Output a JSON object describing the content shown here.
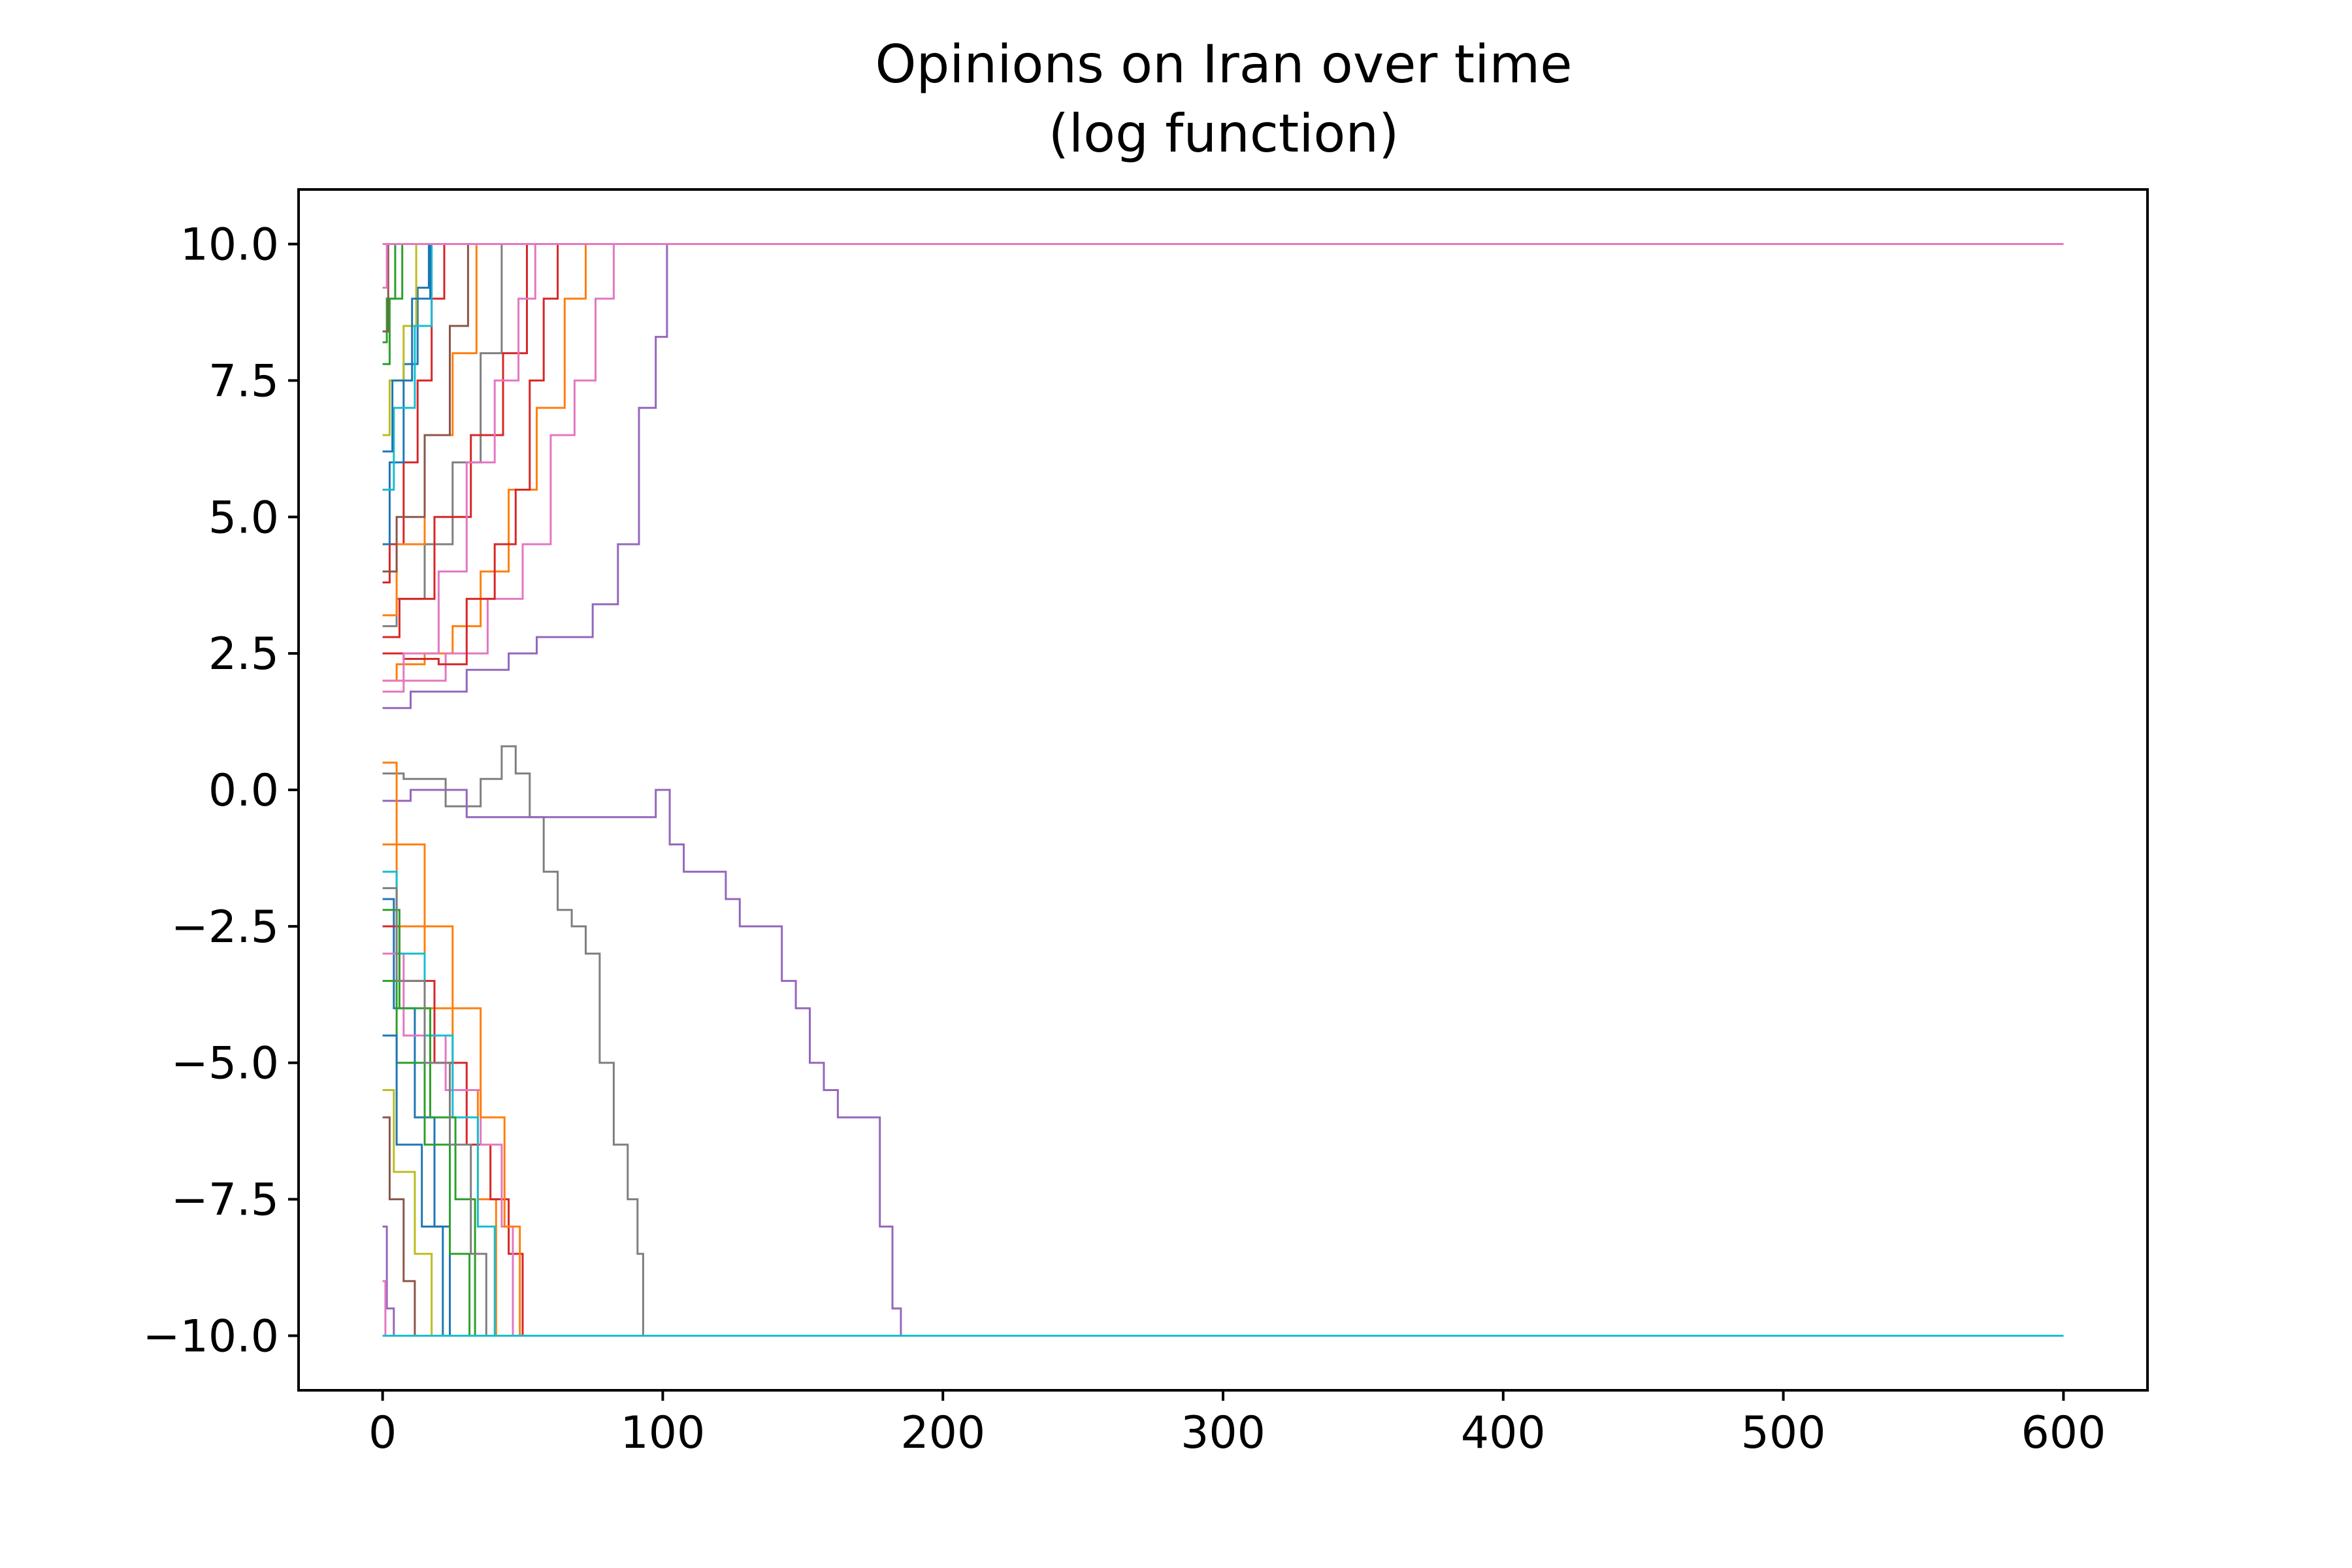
{
  "chart_data": {
    "type": "line",
    "title": "Opinions on Iran over time",
    "subtitle": "(log function)",
    "xlabel": "",
    "ylabel": "",
    "xlim": [
      -30,
      630
    ],
    "ylim": [
      -11,
      11
    ],
    "xticks": [
      "0",
      "100",
      "200",
      "300",
      "400",
      "500",
      "600"
    ],
    "xtick_values": [
      0,
      100,
      200,
      300,
      400,
      500,
      600
    ],
    "yticks": [
      "10.0",
      "7.5",
      "5.0",
      "2.5",
      "0.0",
      "−2.5",
      "−5.0",
      "−7.5",
      "−10.0"
    ],
    "ytick_values": [
      10,
      7.5,
      5,
      2.5,
      0,
      -2.5,
      -5,
      -7.5,
      -10
    ],
    "grid": false,
    "legend": "none",
    "palette": [
      "#1f77b4",
      "#ff7f0e",
      "#2ca02c",
      "#d62728",
      "#9467bd",
      "#8c564b",
      "#e377c2",
      "#7f7f7f",
      "#bcbd22",
      "#17becf"
    ],
    "x_max": 600,
    "series": [
      {
        "color": "#d62728",
        "points": [
          [
            0,
            3.8
          ],
          [
            5,
            4.5
          ],
          [
            10,
            6.0
          ],
          [
            15,
            7.5
          ],
          [
            20,
            9.0
          ],
          [
            24,
            10
          ],
          [
            600,
            10
          ]
        ]
      },
      {
        "color": "#2ca02c",
        "points": [
          [
            0,
            8.2
          ],
          [
            3,
            9.0
          ],
          [
            6,
            10
          ],
          [
            600,
            10
          ]
        ]
      },
      {
        "color": "#1f77b4",
        "points": [
          [
            0,
            4.5
          ],
          [
            5,
            6.0
          ],
          [
            10,
            7.8
          ],
          [
            15,
            9.2
          ],
          [
            18,
            10
          ],
          [
            600,
            10
          ]
        ]
      },
      {
        "color": "#ff7f0e",
        "points": [
          [
            0,
            2.0
          ],
          [
            10,
            2.3
          ],
          [
            20,
            2.5
          ],
          [
            30,
            3.0
          ],
          [
            40,
            4.0
          ],
          [
            50,
            5.5
          ],
          [
            60,
            7.0
          ],
          [
            70,
            9.0
          ],
          [
            75,
            10
          ],
          [
            600,
            10
          ]
        ]
      },
      {
        "color": "#9467bd",
        "points": [
          [
            0,
            1.5
          ],
          [
            20,
            1.8
          ],
          [
            40,
            2.2
          ],
          [
            50,
            2.5
          ],
          [
            60,
            2.8
          ],
          [
            70,
            2.8
          ],
          [
            80,
            3.4
          ],
          [
            88,
            4.5
          ],
          [
            95,
            7.0
          ],
          [
            100,
            8.3
          ],
          [
            103,
            10
          ],
          [
            600,
            10
          ]
        ]
      },
      {
        "color": "#e377c2",
        "points": [
          [
            0,
            1.8
          ],
          [
            15,
            2.0
          ],
          [
            30,
            2.5
          ],
          [
            45,
            3.5
          ],
          [
            55,
            4.5
          ],
          [
            65,
            6.5
          ],
          [
            72,
            7.5
          ],
          [
            80,
            9.0
          ],
          [
            85,
            10
          ],
          [
            600,
            10
          ]
        ]
      },
      {
        "color": "#d62728",
        "points": [
          [
            0,
            2.5
          ],
          [
            15,
            2.4
          ],
          [
            25,
            2.3
          ],
          [
            35,
            3.5
          ],
          [
            45,
            4.5
          ],
          [
            50,
            5.5
          ],
          [
            55,
            7.5
          ],
          [
            60,
            9.0
          ],
          [
            65,
            10
          ],
          [
            600,
            10
          ]
        ]
      },
      {
        "color": "#bcbd22",
        "points": [
          [
            0,
            6.5
          ],
          [
            5,
            7.5
          ],
          [
            10,
            8.5
          ],
          [
            14,
            10
          ],
          [
            600,
            10
          ]
        ]
      },
      {
        "color": "#8c564b",
        "points": [
          [
            0,
            8.4
          ],
          [
            4,
            10
          ],
          [
            600,
            10
          ]
        ]
      },
      {
        "color": "#17becf",
        "points": [
          [
            0,
            5.5
          ],
          [
            8,
            7.0
          ],
          [
            15,
            8.5
          ],
          [
            20,
            10
          ],
          [
            600,
            10
          ]
        ]
      },
      {
        "color": "#e377c2",
        "points": [
          [
            0,
            9.2
          ],
          [
            3,
            10
          ],
          [
            600,
            10
          ]
        ]
      },
      {
        "color": "#7f7f7f",
        "points": [
          [
            0,
            3.0
          ],
          [
            10,
            3.5
          ],
          [
            20,
            4.5
          ],
          [
            30,
            6.0
          ],
          [
            40,
            8.0
          ],
          [
            45,
            10
          ],
          [
            600,
            10
          ]
        ]
      },
      {
        "color": "#d62728",
        "points": [
          [
            0,
            2.8
          ],
          [
            12,
            3.5
          ],
          [
            25,
            5.0
          ],
          [
            38,
            6.5
          ],
          [
            48,
            8.0
          ],
          [
            55,
            10
          ],
          [
            600,
            10
          ]
        ]
      },
      {
        "color": "#2ca02c",
        "points": [
          [
            0,
            7.8
          ],
          [
            5,
            9.0
          ],
          [
            9,
            10
          ],
          [
            600,
            10
          ]
        ]
      },
      {
        "color": "#1f77b4",
        "points": [
          [
            0,
            6.2
          ],
          [
            7,
            7.5
          ],
          [
            14,
            9.0
          ],
          [
            20,
            10
          ],
          [
            600,
            10
          ]
        ]
      },
      {
        "color": "#ff7f0e",
        "points": [
          [
            0,
            3.2
          ],
          [
            10,
            4.5
          ],
          [
            20,
            6.5
          ],
          [
            30,
            8.0
          ],
          [
            37,
            10
          ],
          [
            600,
            10
          ]
        ]
      },
      {
        "color": "#8c564b",
        "points": [
          [
            0,
            4.0
          ],
          [
            10,
            5.0
          ],
          [
            20,
            6.5
          ],
          [
            28,
            8.5
          ],
          [
            33,
            10
          ],
          [
            600,
            10
          ]
        ]
      },
      {
        "color": "#e377c2",
        "points": [
          [
            0,
            2.0
          ],
          [
            15,
            2.5
          ],
          [
            25,
            4.0
          ],
          [
            35,
            6.0
          ],
          [
            45,
            7.5
          ],
          [
            52,
            9.0
          ],
          [
            57,
            10
          ],
          [
            600,
            10
          ]
        ]
      },
      {
        "color": "#7f7f7f",
        "points": [
          [
            0,
            0.3
          ],
          [
            15,
            0.2
          ],
          [
            30,
            -0.3
          ],
          [
            40,
            0.2
          ],
          [
            45,
            0.8
          ],
          [
            50,
            0.3
          ],
          [
            55,
            -0.5
          ],
          [
            60,
            -1.5
          ],
          [
            65,
            -2.2
          ],
          [
            70,
            -2.5
          ],
          [
            75,
            -3.0
          ],
          [
            80,
            -5.0
          ],
          [
            85,
            -6.5
          ],
          [
            90,
            -7.5
          ],
          [
            92,
            -8.5
          ],
          [
            94,
            -10
          ],
          [
            600,
            -10
          ]
        ]
      },
      {
        "color": "#9467bd",
        "points": [
          [
            0,
            -0.2
          ],
          [
            20,
            0.0
          ],
          [
            40,
            -0.5
          ],
          [
            60,
            -0.5
          ],
          [
            80,
            -0.5
          ],
          [
            95,
            -0.5
          ],
          [
            100,
            0.0
          ],
          [
            105,
            -1.0
          ],
          [
            110,
            -1.5
          ],
          [
            120,
            -1.5
          ],
          [
            125,
            -2.0
          ],
          [
            130,
            -2.5
          ],
          [
            140,
            -2.5
          ],
          [
            145,
            -3.5
          ],
          [
            150,
            -4.0
          ],
          [
            155,
            -5.0
          ],
          [
            160,
            -5.5
          ],
          [
            165,
            -6.0
          ],
          [
            175,
            -6.0
          ],
          [
            180,
            -8.0
          ],
          [
            184,
            -9.5
          ],
          [
            186,
            -10
          ],
          [
            600,
            -10
          ]
        ]
      },
      {
        "color": "#ff7f0e",
        "points": [
          [
            0,
            -1.0
          ],
          [
            10,
            -2.5
          ],
          [
            20,
            -4.0
          ],
          [
            30,
            -5.5
          ],
          [
            38,
            -7.5
          ],
          [
            43,
            -10
          ],
          [
            600,
            -10
          ]
        ]
      },
      {
        "color": "#1f77b4",
        "points": [
          [
            0,
            -2.0
          ],
          [
            8,
            -4.0
          ],
          [
            15,
            -6.0
          ],
          [
            22,
            -8.0
          ],
          [
            26,
            -10
          ],
          [
            600,
            -10
          ]
        ]
      },
      {
        "color": "#2ca02c",
        "points": [
          [
            0,
            -3.5
          ],
          [
            10,
            -5.0
          ],
          [
            20,
            -6.5
          ],
          [
            28,
            -8.5
          ],
          [
            34,
            -10
          ],
          [
            600,
            -10
          ]
        ]
      },
      {
        "color": "#d62728",
        "points": [
          [
            0,
            -2.5
          ],
          [
            12,
            -3.5
          ],
          [
            25,
            -5.0
          ],
          [
            35,
            -6.5
          ],
          [
            42,
            -7.5
          ],
          [
            48,
            -8.5
          ],
          [
            52,
            -10
          ],
          [
            600,
            -10
          ]
        ]
      },
      {
        "color": "#e377c2",
        "points": [
          [
            0,
            -3.0
          ],
          [
            15,
            -4.5
          ],
          [
            30,
            -5.5
          ],
          [
            40,
            -6.5
          ],
          [
            45,
            -8.0
          ],
          [
            48,
            -10
          ],
          [
            600,
            -10
          ]
        ]
      },
      {
        "color": "#17becf",
        "points": [
          [
            0,
            -1.5
          ],
          [
            10,
            -3.0
          ],
          [
            20,
            -4.5
          ],
          [
            30,
            -6.0
          ],
          [
            38,
            -8.0
          ],
          [
            42,
            -10
          ],
          [
            600,
            -10
          ]
        ]
      },
      {
        "color": "#bcbd22",
        "points": [
          [
            0,
            -5.5
          ],
          [
            8,
            -7.0
          ],
          [
            15,
            -8.5
          ],
          [
            20,
            -10
          ],
          [
            600,
            -10
          ]
        ]
      },
      {
        "color": "#8c564b",
        "points": [
          [
            0,
            -6.0
          ],
          [
            5,
            -7.5
          ],
          [
            10,
            -9.0
          ],
          [
            13,
            -10
          ],
          [
            600,
            -10
          ]
        ]
      },
      {
        "color": "#9467bd",
        "points": [
          [
            0,
            -8.0
          ],
          [
            3,
            -9.5
          ],
          [
            5,
            -10
          ],
          [
            600,
            -10
          ]
        ]
      },
      {
        "color": "#1f77b4",
        "points": [
          [
            0,
            -4.5
          ],
          [
            10,
            -6.5
          ],
          [
            18,
            -8.0
          ],
          [
            25,
            -10
          ],
          [
            600,
            -10
          ]
        ]
      },
      {
        "color": "#ff7f0e",
        "points": [
          [
            0,
            0.5
          ],
          [
            10,
            -1.0
          ],
          [
            20,
            -2.5
          ],
          [
            30,
            -4.0
          ],
          [
            40,
            -6.0
          ],
          [
            47,
            -8.0
          ],
          [
            51,
            -10
          ],
          [
            600,
            -10
          ]
        ]
      },
      {
        "color": "#2ca02c",
        "points": [
          [
            0,
            -2.2
          ],
          [
            12,
            -4.0
          ],
          [
            22,
            -6.0
          ],
          [
            30,
            -7.5
          ],
          [
            36,
            -10
          ],
          [
            600,
            -10
          ]
        ]
      },
      {
        "color": "#7f7f7f",
        "points": [
          [
            0,
            -1.8
          ],
          [
            10,
            -3.5
          ],
          [
            20,
            -5.0
          ],
          [
            28,
            -6.5
          ],
          [
            35,
            -8.5
          ],
          [
            39,
            -10
          ],
          [
            600,
            -10
          ]
        ]
      },
      {
        "color": "#e377c2",
        "points": [
          [
            0,
            -9.0
          ],
          [
            2,
            -10
          ],
          [
            600,
            -10
          ]
        ]
      },
      {
        "color": "#17becf",
        "points": [
          [
            0,
            -10
          ],
          [
            600,
            -10
          ]
        ]
      },
      {
        "color": "#e377c2",
        "points": [
          [
            0,
            10
          ],
          [
            600,
            10
          ]
        ]
      }
    ]
  }
}
